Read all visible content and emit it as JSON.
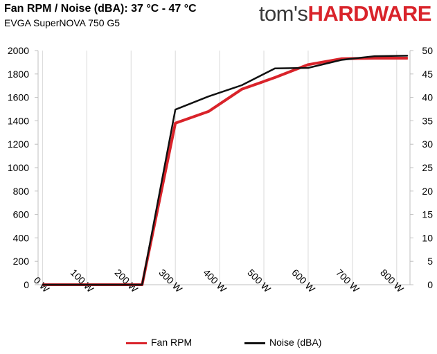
{
  "header": {
    "title": "Fan RPM / Noise (dBA): 37 °C - 47 °C",
    "subtitle": "EVGA SuperNOVA 750 G5",
    "brand_prefix": "tom's",
    "brand_suffix": "HARDWARE"
  },
  "colors": {
    "fan_rpm": "#d9232a",
    "noise": "#111111",
    "brand_dark": "#3a3a3a",
    "brand_red": "#d9232a"
  },
  "chart_data": {
    "type": "line",
    "title": "Fan RPM / Noise (dBA): 37 °C - 47 °C",
    "subtitle": "EVGA SuperNOVA 750 G5",
    "xlim": [
      -10,
      830
    ],
    "x_ticks": [
      0,
      100,
      200,
      300,
      400,
      500,
      600,
      700,
      800
    ],
    "x_tick_labels": [
      "0 W",
      "100 W",
      "200 W",
      "300 W",
      "400 W",
      "500 W",
      "600 W",
      "700 W",
      "800 W"
    ],
    "y_left": {
      "lim": [
        0,
        2000
      ],
      "ticks": [
        0,
        200,
        400,
        600,
        800,
        1000,
        1200,
        1400,
        1600,
        1800,
        2000
      ]
    },
    "y_right": {
      "lim": [
        0,
        50
      ],
      "ticks": [
        0,
        5,
        10,
        15,
        20,
        25,
        30,
        35,
        40,
        45,
        50
      ]
    },
    "grid": "vertical",
    "legend_position": "bottom",
    "series": [
      {
        "name": "Fan RPM",
        "axis": "left",
        "color": "#d9232a",
        "x": [
          0,
          75,
          150,
          225,
          300,
          375,
          450,
          525,
          600,
          675,
          750,
          825
        ],
        "y": [
          0,
          0,
          0,
          0,
          1380,
          1480,
          1670,
          1770,
          1880,
          1930,
          1935,
          1935
        ]
      },
      {
        "name": "Noise (dBA)",
        "axis": "right",
        "color": "#111111",
        "x": [
          0,
          75,
          150,
          225,
          300,
          375,
          450,
          525,
          600,
          675,
          750,
          825
        ],
        "y": [
          0,
          0,
          0,
          0,
          37.4,
          40.2,
          42.6,
          46.2,
          46.3,
          48,
          48.8,
          48.9
        ]
      }
    ]
  }
}
